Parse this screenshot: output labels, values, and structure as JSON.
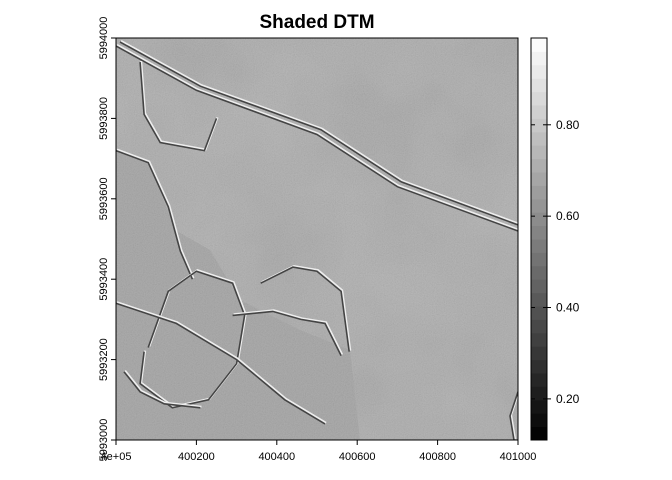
{
  "chart_data": {
    "type": "heatmap",
    "title": "Shaded DTM",
    "xlabel": "",
    "ylabel": "",
    "xlim": [
      400000,
      401000
    ],
    "ylim": [
      5993000,
      5994000
    ],
    "x_ticks": [
      {
        "value": 400000,
        "label": "4e+05"
      },
      {
        "value": 400200,
        "label": "400200"
      },
      {
        "value": 400400,
        "label": "400400"
      },
      {
        "value": 400600,
        "label": "400600"
      },
      {
        "value": 400800,
        "label": "400800"
      },
      {
        "value": 401000,
        "label": "401000"
      }
    ],
    "y_ticks": [
      {
        "value": 5993000,
        "label": "5993000"
      },
      {
        "value": 5993200,
        "label": "5993200"
      },
      {
        "value": 5993400,
        "label": "5993400"
      },
      {
        "value": 5993600,
        "label": "5993600"
      },
      {
        "value": 5993800,
        "label": "5993800"
      },
      {
        "value": 5994000,
        "label": "5994000"
      }
    ],
    "legend": {
      "placement": "right",
      "min": 0.11,
      "max": 0.99,
      "ticks": [
        {
          "value": 0.2,
          "label": "0.20"
        },
        {
          "value": 0.4,
          "label": "0.40"
        },
        {
          "value": 0.6,
          "label": "0.60"
        },
        {
          "value": 0.8,
          "label": "0.80"
        }
      ]
    },
    "features": [
      {
        "name": "embankment",
        "points": [
          [
            400000,
            5993980
          ],
          [
            400200,
            5993870
          ],
          [
            400500,
            5993760
          ],
          [
            400700,
            5993630
          ],
          [
            401000,
            5993520
          ]
        ]
      },
      {
        "name": "embankment-edge",
        "points": [
          [
            400010,
            5993990
          ],
          [
            400210,
            5993880
          ],
          [
            400510,
            5993772
          ],
          [
            400710,
            5993642
          ],
          [
            401000,
            5993535
          ]
        ]
      },
      {
        "name": "ridge-upper",
        "points": [
          [
            400060,
            5993940
          ],
          [
            400070,
            5993810
          ],
          [
            400110,
            5993740
          ],
          [
            400220,
            5993720
          ],
          [
            400250,
            5993800
          ]
        ]
      },
      {
        "name": "ridge-west",
        "points": [
          [
            400000,
            5993720
          ],
          [
            400080,
            5993690
          ],
          [
            400130,
            5993580
          ],
          [
            400160,
            5993470
          ],
          [
            400190,
            5993400
          ]
        ]
      },
      {
        "name": "ring-enclosure",
        "points": [
          [
            400080,
            5993230
          ],
          [
            400130,
            5993370
          ],
          [
            400200,
            5993420
          ],
          [
            400290,
            5993390
          ],
          [
            400320,
            5993310
          ],
          [
            400300,
            5993190
          ],
          [
            400230,
            5993100
          ],
          [
            400140,
            5993080
          ],
          [
            400060,
            5993140
          ],
          [
            400070,
            5993220
          ]
        ]
      },
      {
        "name": "ditch-south",
        "points": [
          [
            400020,
            5993170
          ],
          [
            400060,
            5993120
          ],
          [
            400120,
            5993090
          ],
          [
            400210,
            5993080
          ]
        ]
      },
      {
        "name": "field-edge",
        "points": [
          [
            400290,
            5993310
          ],
          [
            400390,
            5993320
          ],
          [
            400460,
            5993300
          ],
          [
            400520,
            5993290
          ],
          [
            400560,
            5993210
          ]
        ]
      },
      {
        "name": "field-edge-north",
        "points": [
          [
            400360,
            5993390
          ],
          [
            400440,
            5993430
          ],
          [
            400500,
            5993420
          ],
          [
            400560,
            5993370
          ],
          [
            400580,
            5993220
          ]
        ]
      },
      {
        "name": "track",
        "points": [
          [
            400000,
            5993340
          ],
          [
            400150,
            5993290
          ],
          [
            400300,
            5993200
          ],
          [
            400420,
            5993100
          ],
          [
            400520,
            5993040
          ]
        ]
      },
      {
        "name": "channel-east",
        "points": [
          [
            401000,
            5993120
          ],
          [
            400980,
            5993060
          ],
          [
            400990,
            5993000
          ]
        ]
      }
    ]
  }
}
